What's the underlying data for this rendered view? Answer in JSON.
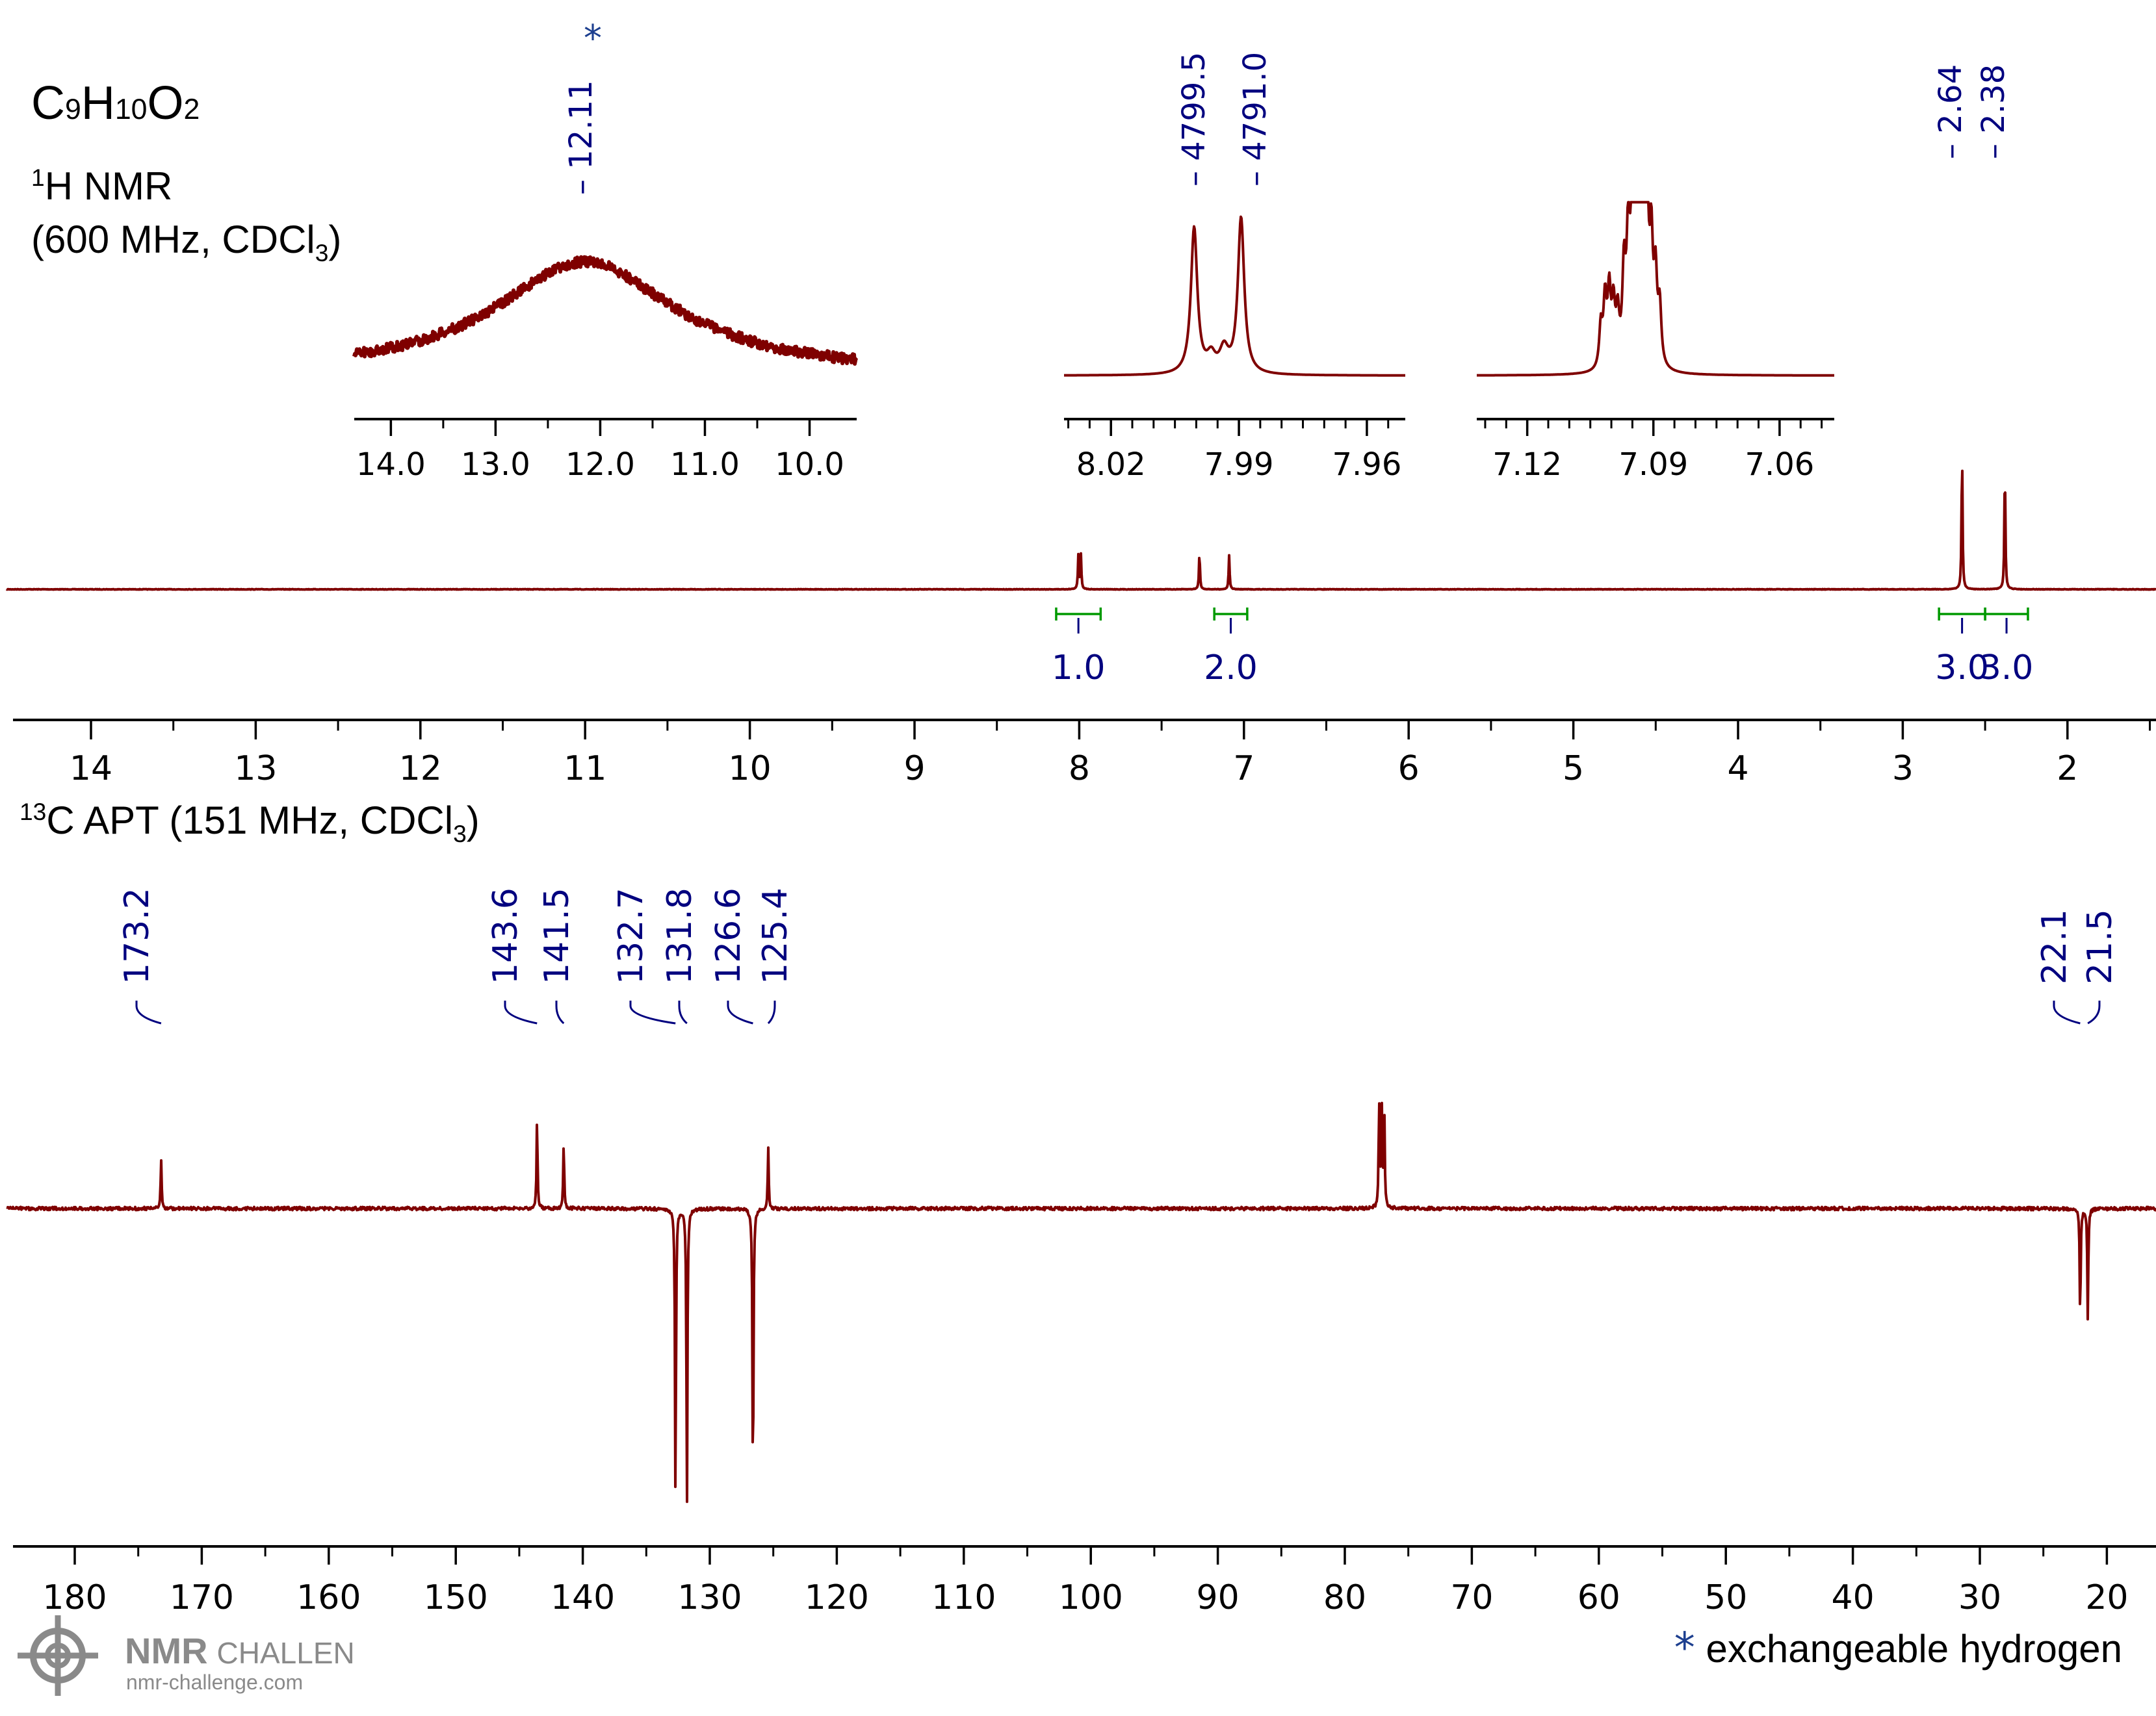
{
  "header": {
    "formula": {
      "p1": "C",
      "s1": "9",
      "p2": "H",
      "s2": "10",
      "p3": "O",
      "s3": "2"
    },
    "h_title": {
      "sup": "1",
      "text": "H NMR"
    },
    "h_conditions": {
      "pre": "(600 MHz, CDCl",
      "sub": "3",
      "post": ")"
    },
    "c_title": {
      "sup": "13",
      "pre": "C APT (151 MHz, CDCl",
      "sub": "3",
      "post": ")"
    }
  },
  "footer": {
    "star": "*",
    "note": "exchangeable hydrogen",
    "logo": {
      "name": "NMR CHALLENGE",
      "bold": "NMR",
      "light": "CHALLENGE",
      "url": "nmr-challenge.com"
    }
  },
  "colors": {
    "spectrum": "#7f0000",
    "labels": "#00007f",
    "integral": "#009900",
    "star": "#1d3f8f"
  },
  "chart_data": [
    {
      "type": "line",
      "id": "h1-main",
      "x_axis": {
        "min": 1.5,
        "max": 14.5,
        "reversed": true,
        "ticks": [
          14,
          13,
          12,
          11,
          10,
          9,
          8,
          7,
          6,
          5,
          4,
          3,
          2
        ],
        "tick_labels": [
          "14",
          "13",
          "12",
          "11",
          "10",
          "9",
          "8",
          "7",
          "6",
          "5",
          "4",
          "3",
          "2"
        ]
      },
      "peaks": [
        {
          "ppm": 8.005,
          "height": 0.53
        },
        {
          "ppm": 7.99,
          "height": 0.53
        },
        {
          "ppm": 7.27,
          "height": 0.57
        },
        {
          "ppm": 7.09,
          "height": 0.52
        },
        {
          "ppm": 2.64,
          "height": 2.15
        },
        {
          "ppm": 2.38,
          "height": 1.95
        }
      ],
      "peak_labels": [
        {
          "value": "12.11",
          "ppm": 12.11,
          "exchangeable": true
        },
        {
          "value": "4799.5",
          "ppm": 7.27
        },
        {
          "value": "4791.0",
          "ppm": 7.09
        },
        {
          "value": "2.64",
          "ppm": 2.64
        },
        {
          "value": "2.38",
          "ppm": 2.38
        }
      ],
      "integrals": [
        {
          "from": 8.14,
          "to": 7.87,
          "value": "1.0"
        },
        {
          "from": 7.18,
          "to": 6.98,
          "value": "2.0"
        },
        {
          "from": 2.78,
          "to": 2.5,
          "value": "3.0"
        },
        {
          "from": 2.5,
          "to": 2.24,
          "value": "3.0"
        }
      ]
    },
    {
      "type": "line",
      "id": "h1-inset-1",
      "x_axis": {
        "min": 9.55,
        "max": 14.35,
        "reversed": true,
        "ticks": [
          14.0,
          13.0,
          12.0,
          11.0,
          10.0
        ],
        "tick_labels": [
          "14.0",
          "13.0",
          "12.0",
          "11.0",
          "10.0"
        ]
      },
      "peaks": [
        {
          "ppm": 12.11,
          "shape": "broad"
        }
      ]
    },
    {
      "type": "line",
      "id": "h1-inset-2",
      "x_axis": {
        "min": 7.951,
        "max": 8.031,
        "reversed": true,
        "ticks": [
          8.02,
          7.99,
          7.96
        ],
        "tick_labels": [
          "8.02",
          "7.99",
          "7.96"
        ]
      },
      "peaks": [
        {
          "ppm": 8.0,
          "height": 0.8
        },
        {
          "ppm": 7.99,
          "height": 0.06
        },
        {
          "ppm": 7.988,
          "height": 0.05
        },
        {
          "ppm": 7.985,
          "height": 0.85
        }
      ]
    },
    {
      "type": "line",
      "id": "h1-inset-3",
      "x_axis": {
        "min": 7.047,
        "max": 7.132,
        "reversed": true,
        "ticks": [
          7.12,
          7.09,
          7.06
        ],
        "tick_labels": [
          "7.12",
          "7.09",
          "7.06"
        ]
      },
      "peaks": [
        {
          "ppm": 7.1,
          "shape": "multiplet"
        },
        {
          "ppm": 7.092,
          "shape": "multiplet"
        }
      ]
    },
    {
      "type": "line",
      "id": "c13-apt",
      "x_axis": {
        "min": 18,
        "max": 185,
        "reversed": true,
        "ticks": [
          180,
          170,
          160,
          150,
          140,
          130,
          120,
          110,
          100,
          90,
          80,
          70,
          60,
          50,
          40,
          30,
          20
        ],
        "tick_labels": [
          "180",
          "170",
          "160",
          "150",
          "140",
          "130",
          "120",
          "110",
          "100",
          "90",
          "80",
          "70",
          "60",
          "50",
          "40",
          "30",
          "20"
        ]
      },
      "peaks": [
        {
          "ppm": 173.2,
          "height": 0.75
        },
        {
          "ppm": 143.6,
          "height": 1.4
        },
        {
          "ppm": 141.5,
          "height": 1.05
        },
        {
          "ppm": 132.7,
          "height": -4.6
        },
        {
          "ppm": 131.8,
          "height": -4.65
        },
        {
          "ppm": 126.6,
          "height": -4.5
        },
        {
          "ppm": 125.4,
          "height": 0.95
        },
        {
          "ppm": 77.3,
          "height": 1.6
        },
        {
          "ppm": 77.1,
          "height": 1.7
        },
        {
          "ppm": 76.9,
          "height": 1.65
        },
        {
          "ppm": 22.1,
          "height": -1.7
        },
        {
          "ppm": 21.5,
          "height": -1.7
        }
      ],
      "peak_labels": [
        {
          "value": "173.2",
          "ppm": 173.2
        },
        {
          "value": "143.6",
          "ppm": 143.6
        },
        {
          "value": "141.5",
          "ppm": 141.5
        },
        {
          "value": "132.7",
          "ppm": 132.7
        },
        {
          "value": "131.8",
          "ppm": 131.8
        },
        {
          "value": "126.6",
          "ppm": 126.6
        },
        {
          "value": "125.4",
          "ppm": 125.4
        },
        {
          "value": "22.1",
          "ppm": 22.1
        },
        {
          "value": "21.5",
          "ppm": 21.5
        }
      ]
    }
  ]
}
